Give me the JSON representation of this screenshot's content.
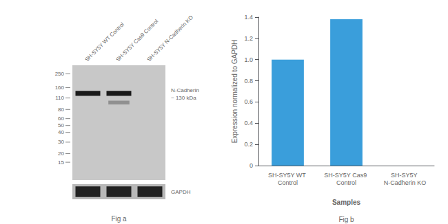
{
  "chart_data": [
    {
      "type": "blot",
      "lanes": [
        "SH-SY5Y WT Control",
        "SH-SY5Y Cas9 Control",
        "SH-SY5Y N-Cadherin KO"
      ],
      "ladder": [
        250,
        160,
        110,
        80,
        60,
        50,
        40,
        30,
        20,
        15
      ],
      "target": "N-Cadherin\n~ 130 kDa",
      "control": "GAPDH",
      "caption": "Fig a"
    },
    {
      "type": "bar",
      "categories": [
        "SH-SY5Y WT Control",
        "SH-SY5Y Cas9 Control",
        "SH-SY5Y N-Cadherin KO"
      ],
      "values": [
        1.0,
        1.38,
        0.0
      ],
      "color": "#3A9EDB",
      "xlabel": "Samples",
      "ylabel": "Expression normalized to GAPDH",
      "ylim": [
        0,
        1.4
      ],
      "yticks": [
        0,
        0.2,
        0.4,
        0.6,
        0.8,
        {
          "value": 1.0,
          "label": "1.0"
        },
        1.2,
        1.4
      ],
      "grid": false,
      "caption": "Fig b"
    }
  ]
}
